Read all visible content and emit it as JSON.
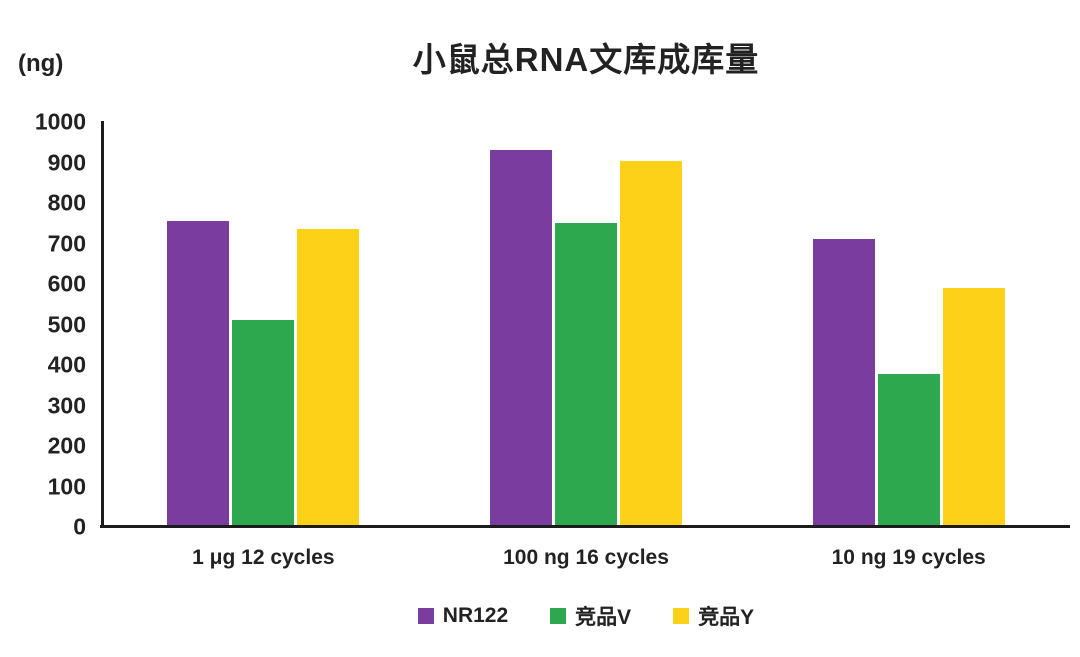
{
  "title": "小鼠总RNA文库成库量",
  "y_axis_unit": "(ng)",
  "colors": {
    "axis": "#1c1c1c",
    "text": "#222222",
    "series_nr122": "#7A3C9E",
    "series_jingpin_v": "#2EA84F",
    "series_jingpin_y": "#FDD117"
  },
  "chart_data": {
    "type": "bar",
    "title": "小鼠总RNA文库成库量",
    "xlabel": "",
    "ylabel": "(ng)",
    "ylim": [
      0,
      1000
    ],
    "ytick_step": 100,
    "ytick_labels": [
      "0",
      "100",
      "200",
      "300",
      "400",
      "500",
      "600",
      "700",
      "800",
      "900",
      "1000"
    ],
    "grid": false,
    "legend_position": "bottom",
    "categories": [
      "1 μg 12 cycles",
      "100 ng 16 cycles",
      "10 ng 19 cycles"
    ],
    "series": [
      {
        "name": "NR122",
        "color": "#7A3C9E",
        "values": [
          755,
          930,
          710
        ]
      },
      {
        "name": "竞品V",
        "color": "#2EA84F",
        "values": [
          510,
          750,
          378
        ]
      },
      {
        "name": "竞品Y",
        "color": "#FDD117",
        "values": [
          735,
          903,
          590
        ]
      }
    ]
  }
}
